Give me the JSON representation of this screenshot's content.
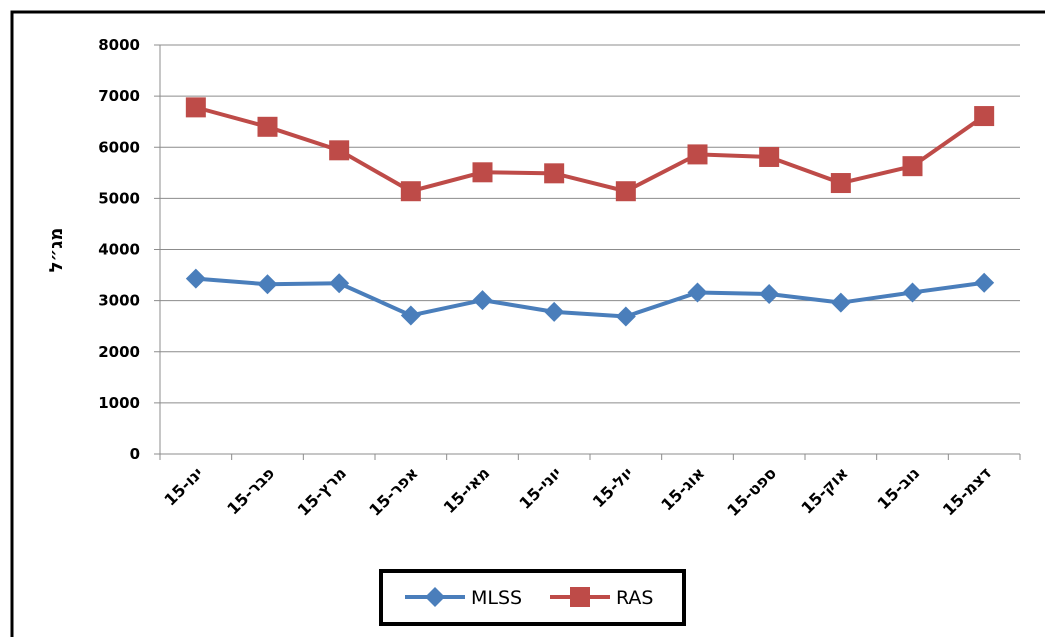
{
  "chart_data": {
    "type": "line",
    "y_label": "מג״ל",
    "categories": [
      "ינו-15",
      "פבר-15",
      "מרץ-15",
      "אפר-15",
      "מאי-15",
      "יוני-15",
      "יול-15",
      "אוג-15",
      "ספט-15",
      "אוק-15",
      "נוב-15",
      "דצמ-15"
    ],
    "series": [
      {
        "name": "MLSS",
        "color": "#4a7ebb",
        "marker": "diamond",
        "values": [
          3430,
          3320,
          3340,
          2710,
          3010,
          2780,
          2690,
          3160,
          3130,
          2960,
          3160,
          3350
        ]
      },
      {
        "name": "RAS",
        "color": "#be4b48",
        "marker": "square",
        "values": [
          6780,
          6400,
          5940,
          5140,
          5510,
          5490,
          5140,
          5860,
          5810,
          5300,
          5630,
          6610
        ]
      }
    ],
    "ylim": [
      0,
      8000
    ],
    "yticks": [
      0,
      1000,
      2000,
      3000,
      4000,
      5000,
      6000,
      7000,
      8000
    ],
    "grid": true,
    "legend": "bottom"
  }
}
